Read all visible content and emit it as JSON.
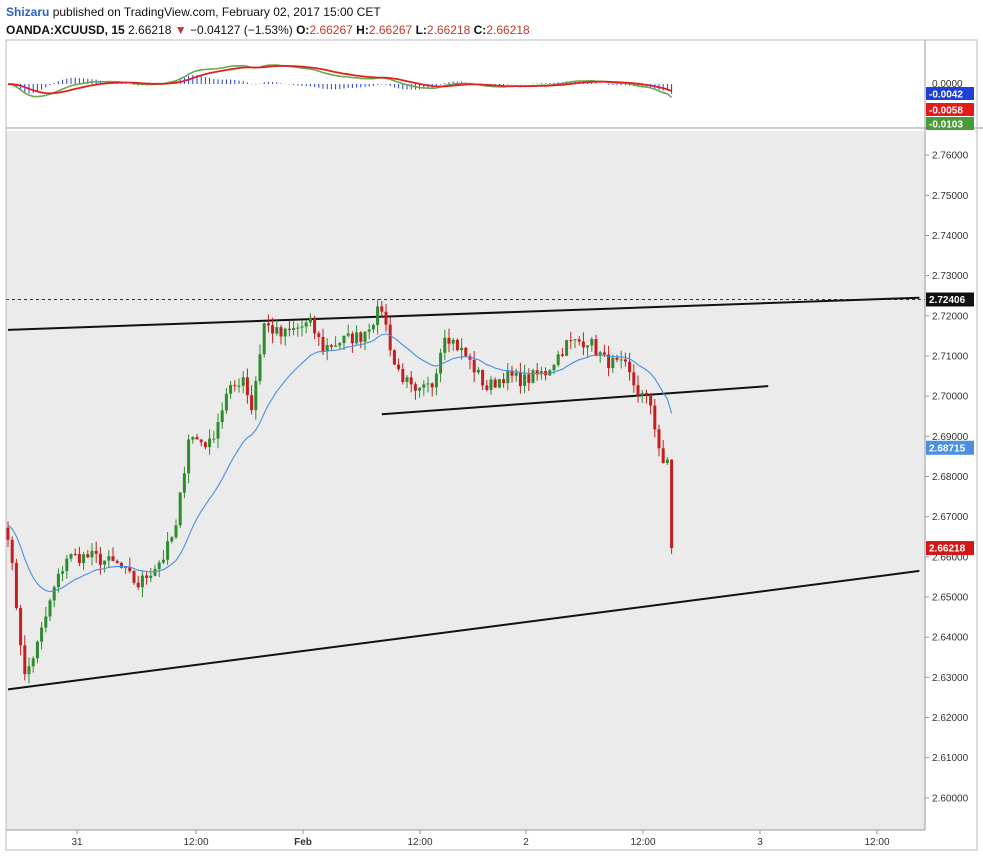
{
  "header": {
    "author": "Shizaru",
    "published_text": "published on TradingView.com, February 02, 2017 15:00 CET",
    "symbol": "OANDA:XCUUSD, 15",
    "last": "2.66218",
    "change_arrow": "▼",
    "change": "−0.04127 (−1.53%)",
    "o_label": "O:",
    "o_value": "2.66267",
    "h_label": "H:",
    "h_value": "2.66267",
    "l_label": "L:",
    "l_value": "2.66218",
    "c_label": "C:",
    "c_value": "2.66218"
  },
  "indicator": {
    "zero_label": "0.0000",
    "tags": [
      {
        "text": "-0.0042",
        "color": "#1f3fd6"
      },
      {
        "text": "-0.0058",
        "color": "#e31a1a"
      },
      {
        "text": "-0.0103",
        "color": "#4a9a3a"
      }
    ],
    "colors": {
      "macd": "#6aa84f",
      "signal": "#e02020",
      "histogram": "#1f3fd6"
    }
  },
  "chart_data": {
    "type": "candlestick",
    "symbol": "OANDA:XCUUSD",
    "interval": "15",
    "ylim": [
      2.592,
      2.766
    ],
    "y_ticks": [
      "2.76000",
      "2.75000",
      "2.74000",
      "2.73000",
      "2.72000",
      "2.71000",
      "2.70000",
      "2.69000",
      "2.68000",
      "2.67000",
      "2.66000",
      "2.65000",
      "2.64000",
      "2.63000",
      "2.62000",
      "2.61000",
      "2.60000"
    ],
    "x_ticks": [
      "31",
      "12:00",
      "Feb",
      "12:00",
      "2",
      "12:00",
      "3",
      "12:00"
    ],
    "price_tags": [
      {
        "text": "2.72406",
        "color": "#111111"
      },
      {
        "text": "2.68715",
        "color": "#4a8fe0"
      },
      {
        "text": "2.66218",
        "color": "#d01818"
      }
    ],
    "horizontal_level": 2.72406,
    "trendlines": [
      {
        "from": {
          "bar": 0,
          "price": 2.7165
        },
        "to": {
          "bar": 217,
          "price": 2.7245
        }
      },
      {
        "from": {
          "bar": 89,
          "price": 2.6955
        },
        "to": {
          "bar": 181,
          "price": 2.7025
        }
      },
      {
        "from": {
          "bar": 0,
          "price": 2.627
        },
        "to": {
          "bar": 217,
          "price": 2.6565
        }
      }
    ],
    "ema_color": "#4a8fe0",
    "up_color": "#2e8b2e",
    "down_color": "#c41e1e",
    "anchors": [
      [
        0,
        2.666
      ],
      [
        4,
        2.63
      ],
      [
        7,
        2.638
      ],
      [
        11,
        2.652
      ],
      [
        14,
        2.66
      ],
      [
        20,
        2.66
      ],
      [
        26,
        2.658
      ],
      [
        31,
        2.653
      ],
      [
        37,
        2.66
      ],
      [
        40,
        2.667
      ],
      [
        43,
        2.69
      ],
      [
        48,
        2.688
      ],
      [
        52,
        2.7
      ],
      [
        56,
        2.705
      ],
      [
        58,
        2.697
      ],
      [
        61,
        2.718
      ],
      [
        65,
        2.715
      ],
      [
        69,
        2.717
      ],
      [
        72,
        2.718
      ],
      [
        75,
        2.712
      ],
      [
        80,
        2.714
      ],
      [
        84,
        2.715
      ],
      [
        89,
        2.722
      ],
      [
        92,
        2.708
      ],
      [
        97,
        2.7
      ],
      [
        101,
        2.703
      ],
      [
        104,
        2.716
      ],
      [
        109,
        2.71
      ],
      [
        114,
        2.702
      ],
      [
        118,
        2.705
      ],
      [
        123,
        2.704
      ],
      [
        128,
        2.706
      ],
      [
        133,
        2.713
      ],
      [
        138,
        2.714
      ],
      [
        142,
        2.709
      ],
      [
        147,
        2.707
      ],
      [
        150,
        2.701
      ],
      [
        153,
        2.698
      ],
      [
        156,
        2.682
      ],
      [
        157,
        2.684
      ],
      [
        158,
        2.662
      ]
    ],
    "last_price": 2.66218
  }
}
